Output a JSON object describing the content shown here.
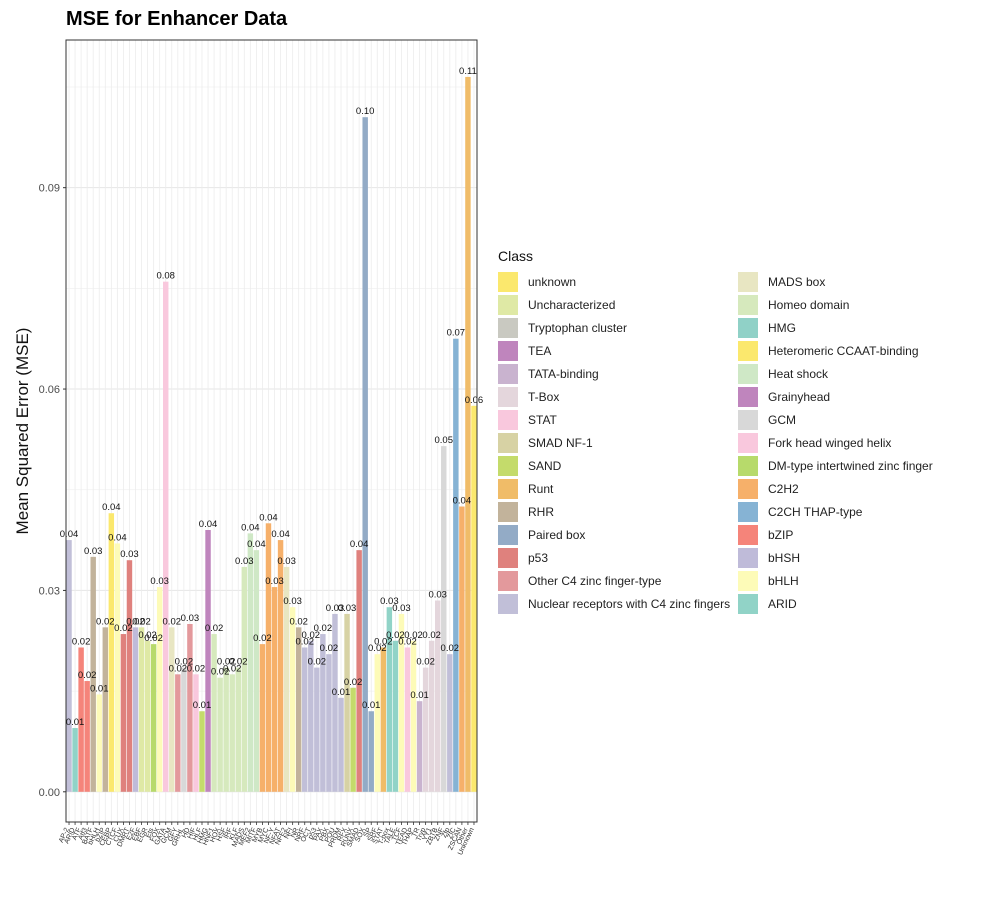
{
  "chart_data": {
    "type": "bar",
    "title": "MSE for Enhancer Data",
    "ylabel": "Mean Squared Error (MSE)",
    "xlabel": "",
    "ylim": [
      -0.0045,
      0.112
    ],
    "yticks": [
      0.0,
      0.03,
      0.06,
      0.09
    ],
    "ytick_labels": [
      "0.00",
      "0.03",
      "0.06",
      "0.09"
    ],
    "grid": true,
    "legend": {
      "title": "Class",
      "placement": "right",
      "columns": [
        [
          {
            "label": "unknown",
            "color": "#fbe86d"
          },
          {
            "label": "Uncharacterized",
            "color": "#dfe9a5"
          },
          {
            "label": "Tryptophan cluster",
            "color": "#c9c9c1"
          },
          {
            "label": "TEA",
            "color": "#bf85bd"
          },
          {
            "label": "TATA-binding",
            "color": "#c9b3cf"
          },
          {
            "label": "T-Box",
            "color": "#e4d6dc"
          },
          {
            "label": "STAT",
            "color": "#f9c8dd"
          },
          {
            "label": "SMAD NF-1",
            "color": "#d7d2a4"
          },
          {
            "label": "SAND",
            "color": "#c4db6b"
          },
          {
            "label": "Runt",
            "color": "#f0bc68"
          },
          {
            "label": "RHR",
            "color": "#c2b39b"
          },
          {
            "label": "Paired box",
            "color": "#93abc6"
          },
          {
            "label": "p53",
            "color": "#df817d"
          },
          {
            "label": "Other C4 zinc finger-type",
            "color": "#e3999c"
          },
          {
            "label": "Nuclear receptors with C4 zinc fingers",
            "color": "#c1bfd8"
          }
        ],
        [
          {
            "label": "MADS box",
            "color": "#e8e6c2"
          },
          {
            "label": "Homeo domain",
            "color": "#d6e9bd"
          },
          {
            "label": "HMG",
            "color": "#90d1c7"
          },
          {
            "label": "Heteromeric CCAAT-binding",
            "color": "#fbe86d"
          },
          {
            "label": "Heat shock",
            "color": "#cfe8c6"
          },
          {
            "label": "Grainyhead",
            "color": "#bf85bd"
          },
          {
            "label": "GCM",
            "color": "#d8d8d8"
          },
          {
            "label": "Fork head   winged helix",
            "color": "#f9c8dd"
          },
          {
            "label": "DM-type intertwined zinc finger",
            "color": "#b7da6b"
          },
          {
            "label": "C2H2",
            "color": "#f6b06a"
          },
          {
            "label": "C2CH THAP-type",
            "color": "#86b3d4"
          },
          {
            "label": "bZIP",
            "color": "#f5847a"
          },
          {
            "label": "bHSH",
            "color": "#bfbbd9"
          },
          {
            "label": "bHLH",
            "color": "#fdfbb8"
          },
          {
            "label": "ARID",
            "color": "#91d3c7"
          }
        ]
      ]
    },
    "categories": [
      "AP-2",
      "ARID",
      "ATF",
      "Atf3",
      "BATF",
      "bHLH",
      "bZIP",
      "CEBP",
      "CTCF",
      "CUX",
      "DMRT",
      "E2F",
      "EBF",
      "EGR",
      "Ets",
      "FOX",
      "GATA",
      "GCM",
      "GFY",
      "GRHL",
      "HD",
      "HIF",
      "HLF",
      "HMG",
      "HNF1",
      "HOX",
      "HSF",
      "IRF",
      "KLF",
      "MADS",
      "MEF2",
      "MITF",
      "MYB",
      "MYC",
      "NF-Y",
      "NFAT",
      "NFE2",
      "NFI",
      "NR",
      "NRF",
      "OCT",
      "p53",
      "PAX",
      "PBX",
      "POU",
      "PRDM",
      "RFX",
      "RUNX",
      "SMAD",
      "SOX",
      "SP",
      "SRF",
      "STAT",
      "T-box",
      "TALE",
      "TCF",
      "TEAD",
      "THAP",
      "TR",
      "Tryp",
      "YY1",
      "ZBTB",
      "ZNF",
      "Zfp",
      "ZIC",
      "ZSCAN",
      "Other",
      "Unknown"
    ],
    "xtick_labels": [
      "AP-2",
      "ARID",
      "ATF",
      "Atf3",
      "BATF",
      "bHLH",
      "bZIP",
      "CEBP",
      "CTCF",
      "CUX",
      "DMRT",
      "E2F",
      "EBF",
      "EGR",
      "Ets",
      "FOX",
      "GATA",
      "GCM",
      "GFY",
      "GRHL",
      "HD",
      "HIF",
      "HLF",
      "HMG",
      "HNF1",
      "HOX",
      "HSF",
      "IRF",
      "KLF",
      "MADS",
      "MEF2",
      "MITF",
      "MYB",
      "MYC",
      "NF-Y",
      "NFAT",
      "NFE2",
      "NFI",
      "NR",
      "NRF",
      "OCT",
      "p53",
      "PAX",
      "PBX",
      "POU",
      "PRDM",
      "RFX",
      "RUNX",
      "SMAD",
      "SOX",
      "SP",
      "SRF",
      "STAT",
      "T-box",
      "TALE",
      "TCF",
      "TEAD",
      "THAP",
      "TR",
      "Tryp",
      "YY1",
      "ZBTB",
      "ZNF",
      "Zfp",
      "ZIC",
      "ZSCAN",
      "Other",
      "Unknown"
    ],
    "series": [
      {
        "values": [
          0.0375,
          0.0095,
          0.0215,
          0.0165,
          0.035,
          0.0145,
          0.0245,
          0.0415,
          0.037,
          0.0235,
          0.0345,
          0.0245,
          0.0245,
          0.0225,
          0.022,
          0.0305,
          0.076,
          0.0245,
          0.0175,
          0.0185,
          0.025,
          0.0175,
          0.012,
          0.039,
          0.0235,
          0.017,
          0.0185,
          0.0175,
          0.0185,
          0.0335,
          0.0385,
          0.036,
          0.022,
          0.04,
          0.0305,
          0.0375,
          0.0335,
          0.0275,
          0.0245,
          0.0215,
          0.0225,
          0.0185,
          0.0235,
          0.0205,
          0.0265,
          0.014,
          0.0265,
          0.0155,
          0.036,
          0.1005,
          0.012,
          0.0205,
          0.0215,
          0.0275,
          0.0225,
          0.0265,
          0.0215,
          0.0225,
          0.0135,
          0.0185,
          0.0225,
          0.0285,
          0.0515,
          0.0205,
          0.0675,
          0.0425,
          0.1065,
          0.0575
        ],
        "labels": [
          "0.04",
          "0.01",
          "0.02",
          "0.02",
          "0.03",
          "0.01",
          "0.02",
          "0.04",
          "0.04",
          "0.02",
          "0.03",
          "0.02",
          "0.02",
          "0.02",
          "0.02",
          "0.03",
          "0.08",
          "0.02",
          "0.02",
          "0.02",
          "0.03",
          "0.02",
          "0.01",
          "0.04",
          "0.02",
          "0.02",
          "0.02",
          "0.02",
          "0.02",
          "0.03",
          "0.04",
          "0.04",
          "0.02",
          "0.04",
          "0.03",
          "0.04",
          "0.03",
          "0.03",
          "0.02",
          "0.02",
          "0.02",
          "0.02",
          "0.02",
          "0.02",
          "0.03",
          "0.01",
          "0.03",
          "0.02",
          "0.04",
          "0.10",
          "0.01",
          "0.02",
          "0.02",
          "0.03",
          "0.02",
          "0.03",
          "0.02",
          "0.02",
          "0.01",
          "0.02",
          "0.02",
          "0.03",
          "0.05",
          "0.02",
          "0.07",
          "0.04",
          "0.11",
          "0.06"
        ],
        "colors": [
          "#c1bfd8",
          "#91d3c7",
          "#f5847a",
          "#f5847a",
          "#c2b39b",
          "#fdfbb8",
          "#c2b39b",
          "#fbe86d",
          "#fdfbb8",
          "#df817d",
          "#df817d",
          "#bfbbd9",
          "#dfe9a5",
          "#dfe9a5",
          "#b7da6b",
          "#fdfbb8",
          "#f9c8dd",
          "#e8e6c2",
          "#e3999c",
          "#d8d8d8",
          "#e3999c",
          "#f9c8dd",
          "#c4db6b",
          "#bf85bd",
          "#d6e9bd",
          "#d6e9bd",
          "#d6e9bd",
          "#d6e9bd",
          "#d6e9bd",
          "#d6e9bd",
          "#cfe8c6",
          "#cfe8c6",
          "#f6b06a",
          "#f6b06a",
          "#f6b06a",
          "#f6b06a",
          "#e8e6c2",
          "#fdfbb8",
          "#c2b39b",
          "#c1bfd8",
          "#c1bfd8",
          "#c1bfd8",
          "#c1bfd8",
          "#c1bfd8",
          "#c1bfd8",
          "#c1bfd8",
          "#d7d2a4",
          "#c4db6b",
          "#df817d",
          "#93abc6",
          "#93abc6",
          "#fdfbb8",
          "#f0bc68",
          "#91d3c7",
          "#91d3c7",
          "#fdfbb8",
          "#f9c8dd",
          "#fdfbb8",
          "#c9b3cf",
          "#e4d6dc",
          "#e4d6dc",
          "#e4d6dc",
          "#d8d8d8",
          "#c1bfd8",
          "#86b3d4",
          "#f6b06a",
          "#f0bc68",
          "#fbe86d"
        ]
      }
    ]
  }
}
